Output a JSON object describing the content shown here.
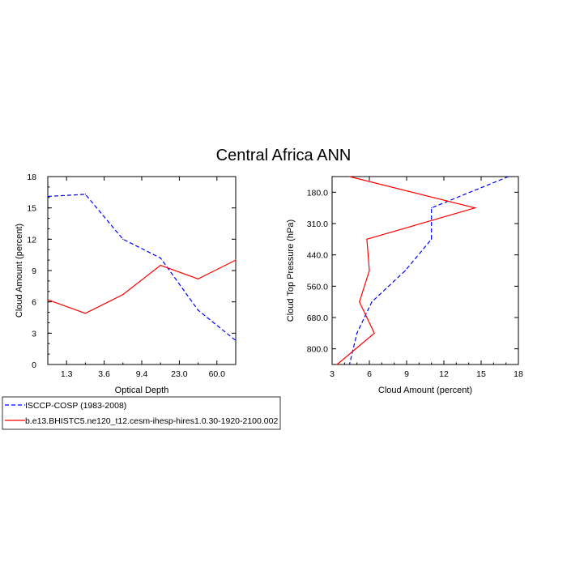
{
  "title": "Central Africa ANN",
  "legend": [
    {
      "label": "ISCCP-COSP (1983-2008)",
      "color": "#0000ff",
      "dash": "dashed"
    },
    {
      "label": "b.e13.BHISTC5.ne120_t12.cesm-ihesp-hires1.0.30-1920-2100.002",
      "color": "#ff0000",
      "dash": "solid"
    }
  ],
  "chart_data": [
    {
      "type": "line",
      "xlabel": "Optical Depth",
      "ylabel": "Cloud Amount (percent)",
      "x_tick_labels": [
        "1.3",
        "3.6",
        "9.4",
        "23.0",
        "60.0"
      ],
      "x_tick_index": [
        0.5,
        1.5,
        2.5,
        3.5,
        4.5
      ],
      "xlim_index": [
        0,
        5
      ],
      "ylim": [
        0,
        18
      ],
      "y_ticks": [
        0,
        3,
        6,
        9,
        12,
        15,
        18
      ],
      "series": [
        {
          "name": "ISCCP-COSP (1983-2008)",
          "x_index": [
            0,
            1,
            2,
            3,
            4,
            5
          ],
          "values": [
            16.1,
            16.3,
            12.0,
            10.2,
            5.2,
            2.3
          ]
        },
        {
          "name": "b.e13.BHISTC5.ne120_t12.cesm-ihesp-hires1.0.30-1920-2100.002",
          "x_index": [
            0,
            1,
            2,
            3,
            4,
            5
          ],
          "values": [
            6.2,
            4.9,
            6.7,
            9.5,
            8.2,
            10.0
          ]
        }
      ]
    },
    {
      "type": "line",
      "xlabel": "Cloud Amount (percent)",
      "ylabel": "Cloud Top Pressure (hPa)",
      "xlim": [
        3,
        18
      ],
      "x_ticks": [
        3,
        6,
        9,
        12,
        15,
        18
      ],
      "y_tick_labels": [
        "180.0",
        "310.0",
        "440.0",
        "560.0",
        "680.0",
        "800.0"
      ],
      "y_tick_index": [
        0.5,
        1.5,
        2.5,
        3.5,
        4.5,
        5.5
      ],
      "ylim_index": [
        0,
        6
      ],
      "series": [
        {
          "name": "ISCCP-COSP (1983-2008)",
          "y_index": [
            0,
            1,
            2,
            3,
            4,
            5,
            6
          ],
          "values": [
            17.2,
            11.0,
            11.0,
            8.9,
            6.2,
            5.0,
            4.4
          ]
        },
        {
          "name": "b.e13.BHISTC5.ne120_t12.cesm-ihesp-hires1.0.30-1920-2100.002",
          "y_index": [
            0,
            1,
            2,
            3,
            4,
            5,
            6
          ],
          "values": [
            4.4,
            14.5,
            5.8,
            6.0,
            5.2,
            6.4,
            3.4
          ]
        }
      ]
    }
  ]
}
